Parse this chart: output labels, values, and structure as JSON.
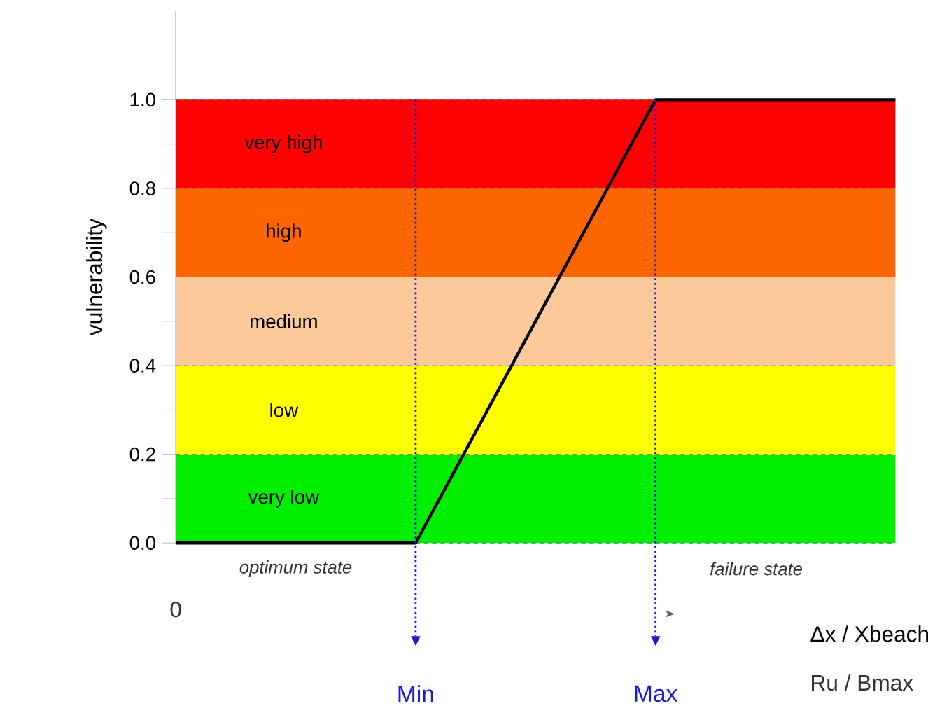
{
  "chart_data": {
    "type": "line",
    "xlabel": "Δx / Xbeach",
    "ylabel": "vulnerability",
    "ylim": [
      0,
      1.2
    ],
    "yticks": [
      {
        "value": 0,
        "label": "0.0"
      },
      {
        "value": 0.1,
        "label": null
      },
      {
        "value": 0.2,
        "label": "0.2"
      },
      {
        "value": 0.3,
        "label": null
      },
      {
        "value": 0.4,
        "label": "0.4"
      },
      {
        "value": 0.5,
        "label": null
      },
      {
        "value": 0.6,
        "label": "0.6"
      },
      {
        "value": 0.7,
        "label": null
      },
      {
        "value": 0.8,
        "label": "0.8"
      },
      {
        "value": 0.9,
        "label": null
      },
      {
        "value": 1.0,
        "label": "1.0"
      }
    ],
    "categories": [
      null,
      "Min",
      "Max",
      null
    ],
    "series": [
      {
        "color": "#000000",
        "values": [
          0,
          0,
          1,
          1
        ]
      }
    ],
    "bands": [
      {
        "axis": "y",
        "from": 0,
        "to": 0.2,
        "label": "very low",
        "color": "#00ee00"
      },
      {
        "axis": "y",
        "from": 0.2,
        "to": 0.4,
        "label": "low",
        "color": "#ffff00"
      },
      {
        "axis": "y",
        "from": 0.4,
        "to": 0.6,
        "label": "medium",
        "color": "#fbc99a"
      },
      {
        "axis": "y",
        "from": 0.6,
        "to": 0.8,
        "label": "high",
        "color": "#ff6600"
      },
      {
        "axis": "y",
        "from": 0.8,
        "to": 1.0,
        "label": "very high",
        "color": "#ff0000"
      }
    ],
    "annotations": [
      "optimum state",
      "failure state",
      "Ru / Bmax",
      "0"
    ],
    "grid": true,
    "marker": "none",
    "line_style": "solid"
  }
}
